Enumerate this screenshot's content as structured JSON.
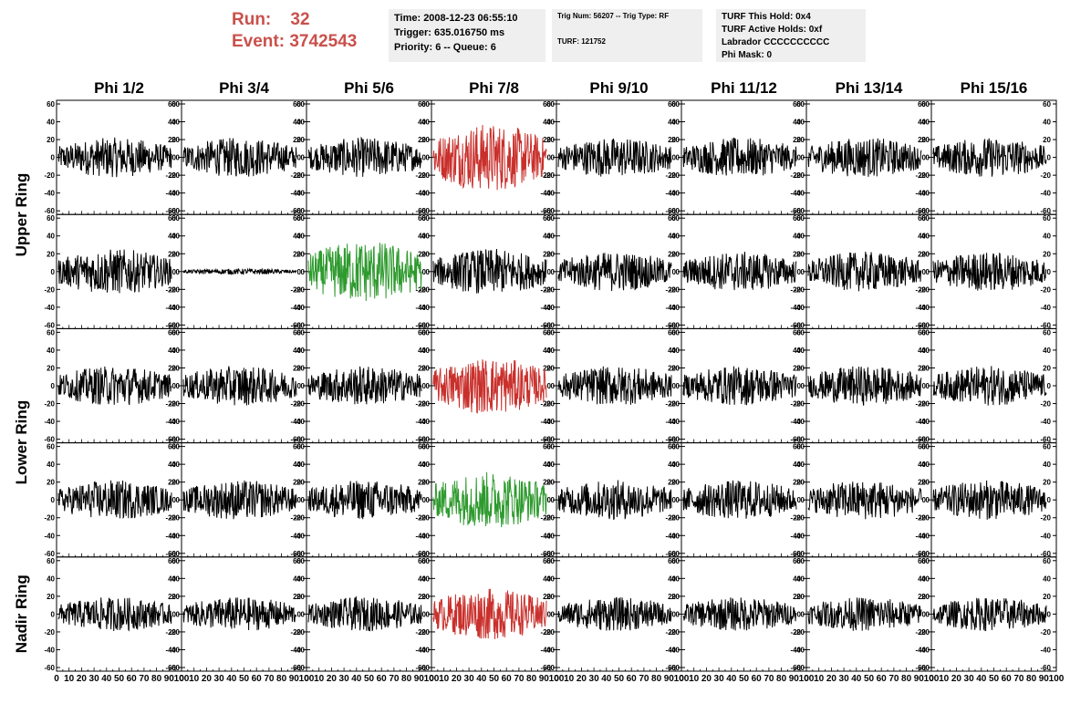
{
  "header": {
    "run_label": "Run:",
    "run_value": "32",
    "event_label": "Event:",
    "event_value": "3742543",
    "time_line": "Time: 2008-12-23 06:55:10",
    "trigger_line": "Trigger: 635.016750 ms",
    "priority_line": "Priority: 6 -- Queue: 6",
    "trig_num_line": "Trig Num: 56207 -- Trig Type: RF",
    "turf_line": "TURF: 121752",
    "turf_this_hold": "TURF This Hold: 0x4",
    "turf_active_holds": "TURF Active Holds: 0xf",
    "labrador_line": "Labrador CCCCCCCCCC",
    "phi_mask_line": "Phi Mask: 0"
  },
  "columns": [
    "Phi 1/2",
    "Phi 3/4",
    "Phi 5/6",
    "Phi 7/8",
    "Phi 9/10",
    "Phi 11/12",
    "Phi 13/14",
    "Phi 15/16"
  ],
  "ring_labels": [
    {
      "text": "Upper Ring",
      "rows": [
        0,
        1
      ]
    },
    {
      "text": "Lower Ring",
      "rows": [
        2,
        3
      ]
    },
    {
      "text": "Nadir Ring",
      "rows": [
        4
      ]
    }
  ],
  "colors": {
    "default": "#000000",
    "triggered_red": "#c9302c",
    "triggered_green": "#2e9a2e",
    "accent": "#c9504b",
    "box_bg": "#efefef"
  },
  "chart_data": {
    "type": "line",
    "grid": "5x8 waveform panels",
    "xlim": [
      0,
      100
    ],
    "ylim": [
      -60,
      60
    ],
    "yticks": [
      -60,
      -40,
      -20,
      0,
      20,
      40,
      60
    ],
    "xtick_labels": [
      "0",
      "10",
      "20",
      "30",
      "40",
      "50",
      "60",
      "70",
      "80",
      "90",
      "100"
    ],
    "panel_amplitudes": [
      [
        14,
        14,
        14,
        24,
        14,
        14,
        14,
        14
      ],
      [
        16,
        2,
        22,
        16,
        14,
        14,
        14,
        14
      ],
      [
        14,
        14,
        14,
        20,
        14,
        14,
        14,
        14
      ],
      [
        14,
        14,
        14,
        20,
        14,
        14,
        14,
        14
      ],
      [
        12,
        12,
        12,
        18,
        12,
        12,
        12,
        12
      ]
    ],
    "panel_colors": [
      [
        "default",
        "default",
        "default",
        "triggered_red",
        "default",
        "default",
        "default",
        "default"
      ],
      [
        "default",
        "default",
        "triggered_green",
        "default",
        "default",
        "default",
        "default",
        "default"
      ],
      [
        "default",
        "default",
        "default",
        "triggered_red",
        "default",
        "default",
        "default",
        "default"
      ],
      [
        "default",
        "default",
        "default",
        "triggered_green",
        "default",
        "default",
        "default",
        "default"
      ],
      [
        "default",
        "default",
        "default",
        "triggered_red",
        "default",
        "default",
        "default",
        "default"
      ]
    ]
  }
}
